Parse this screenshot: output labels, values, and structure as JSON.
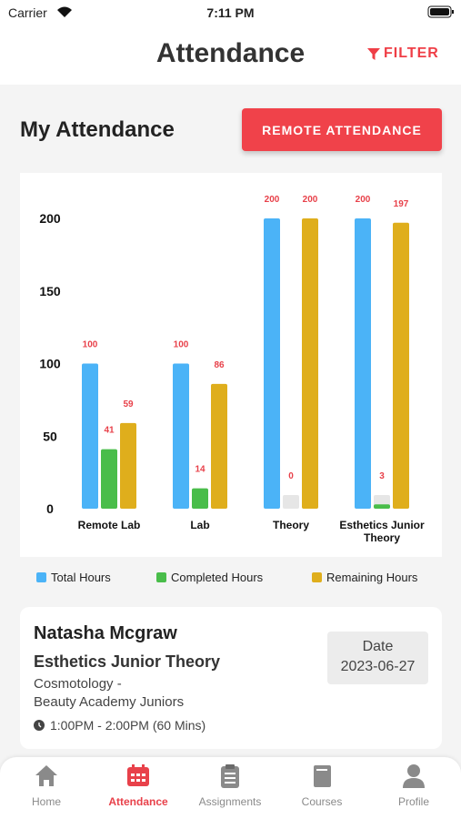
{
  "status_bar": {
    "carrier": "Carrier",
    "time": "7:11 PM"
  },
  "header": {
    "title": "Attendance",
    "filter": "FILTER"
  },
  "section": {
    "title": "My Attendance",
    "button": "REMOTE ATTENDANCE"
  },
  "chart_data": {
    "type": "bar",
    "categories": [
      "Remote Lab",
      "Lab",
      "Theory",
      "Esthetics Junior Theory"
    ],
    "series": [
      {
        "name": "Total Hours",
        "color": "#4bb3f7",
        "values": [
          100,
          100,
          200,
          200
        ]
      },
      {
        "name": "Completed Hours",
        "color": "#49bd4a",
        "values": [
          41,
          14,
          0,
          3
        ]
      },
      {
        "name": "Remaining Hours",
        "color": "#dfae1c",
        "values": [
          59,
          86,
          200,
          197
        ]
      }
    ],
    "ylim": [
      0,
      200
    ],
    "yticks": [
      0,
      50,
      100,
      150,
      200
    ],
    "value_label_color": "#e8414a"
  },
  "card": {
    "name": "Natasha Mcgraw",
    "course": "Esthetics Junior Theory",
    "program": "Cosmotology -",
    "school": "Beauty Academy Juniors",
    "time": "1:00PM - 2:00PM (60 Mins)",
    "date_label": "Date",
    "date": "2023-06-27"
  },
  "tab_bar": {
    "items": [
      "Home",
      "Attendance",
      "Assignments",
      "Courses",
      "Profile"
    ]
  }
}
